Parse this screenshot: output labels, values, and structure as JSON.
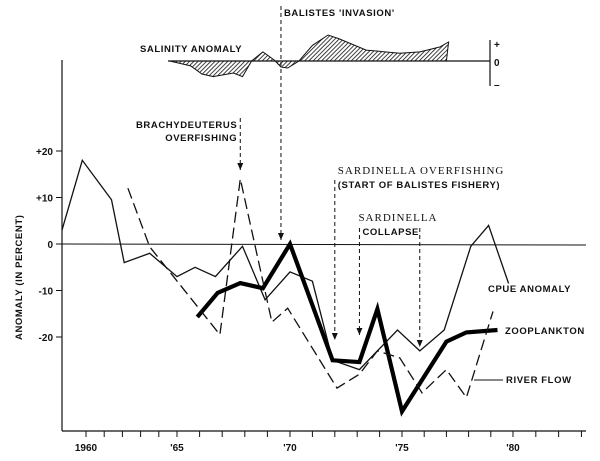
{
  "chart_data": {
    "type": "line",
    "title": "",
    "ylabel": "ANOMALY (IN PERCENT)",
    "xlabel": "",
    "xlim": [
      1958.7,
      1983.2
    ],
    "ylim": [
      -40,
      40
    ],
    "x_tick_labels": [
      {
        "x": 1960,
        "label": "1960"
      },
      {
        "x": 1965,
        "label": "'65"
      },
      {
        "x": 1970,
        "label": "'70"
      },
      {
        "x": 1975,
        "label": "'75"
      },
      {
        "x": 1980,
        "label": "'80"
      }
    ],
    "y_tick_labels": [
      {
        "y": 20,
        "label": "+20"
      },
      {
        "y": 10,
        "label": "+10"
      },
      {
        "y": 0,
        "label": "0"
      },
      {
        "y": -10,
        "label": "-10"
      },
      {
        "y": -20,
        "label": "-20"
      }
    ],
    "grid": false,
    "zero_line": true,
    "series": [
      {
        "name": "CPUE ANOMALY",
        "style": "thin-solid",
        "color": "#111111",
        "x": [
          1958.7,
          1959.8,
          1961.4,
          1962.1,
          1963.5,
          1965.0,
          1965.8,
          1966.7,
          1967.9,
          1968.9,
          1970.0,
          1971.0,
          1971.9,
          1973.1,
          1974.8,
          1975.8,
          1976.9,
          1978.1,
          1978.9,
          1979.8
        ],
        "y": [
          3,
          18,
          9.5,
          -4,
          -2,
          -7,
          -5,
          -7,
          -0.5,
          -12,
          -6,
          -8,
          -25,
          -27,
          -18.5,
          -23,
          -18.5,
          -0.5,
          4,
          -8.5
        ]
      },
      {
        "name": "ZOOPLANKTON",
        "style": "thick-solid",
        "color": "#000000",
        "x": [
          1965.9,
          1966.8,
          1967.8,
          1968.8,
          1970.0,
          1971.9,
          1973.1,
          1973.9,
          1975.0,
          1977.0,
          1977.9,
          1979.3
        ],
        "y": [
          -15.7,
          -10.5,
          -8.4,
          -9.5,
          0,
          -25,
          -25.4,
          -14,
          -36,
          -21,
          -19,
          -18.5
        ]
      },
      {
        "name": "RIVER FLOW",
        "style": "dashed",
        "color": "#111111",
        "x": [
          1962.3,
          1963.5,
          1966.9,
          1967.8,
          1969.2,
          1969.9,
          1972.1,
          1973.1,
          1973.9,
          1974.9,
          1975.9,
          1977.0,
          1977.9,
          1979.1
        ],
        "y": [
          12,
          -0.6,
          -19.5,
          14,
          -16.8,
          -13.8,
          -31,
          -28,
          -23,
          -24.5,
          -32,
          -27,
          -33,
          -14.5
        ]
      }
    ],
    "salinity_panel": {
      "label": "SALINITY ANOMALY",
      "axis_labels": {
        "plus": "+",
        "zero": "0",
        "minus": "–"
      },
      "fill": "hatched",
      "x": [
        1964.6,
        1965.6,
        1966.1,
        1966.6,
        1967.5,
        1967.9,
        1968.3,
        1968.8,
        1969.3,
        1969.6,
        1969.9,
        1970.4,
        1971.0,
        1971.7,
        1972.2,
        1973.4,
        1974.9,
        1975.8,
        1976.7,
        1977.1,
        1977.0
      ],
      "relative_value": [
        0,
        -0.19,
        -0.5,
        -0.6,
        -0.46,
        -0.6,
        0,
        0.35,
        0.04,
        -0.23,
        -0.27,
        0,
        0.6,
        1.0,
        0.85,
        0.42,
        0.3,
        0.35,
        0.54,
        0.73,
        0
      ]
    },
    "annotations": [
      {
        "id": "balistes",
        "lines": [
          "BALISTES 'INVASION'"
        ],
        "x": 1969.6
      },
      {
        "id": "brachy",
        "lines": [
          "BRACHYDEUTERUS",
          "OVERFISHING"
        ],
        "x": 1967.8
      },
      {
        "id": "sardinella-overfishing",
        "lines": [
          "SARDINELLA OVERFISHING",
          "(START OF BALISTES FISHERY)"
        ],
        "x": [
          1972.0,
          1973.1
        ]
      },
      {
        "id": "sardinella-collapse",
        "lines": [
          "SARDINELLA",
          "COLLAPSE"
        ],
        "x": 1975.8
      }
    ]
  }
}
